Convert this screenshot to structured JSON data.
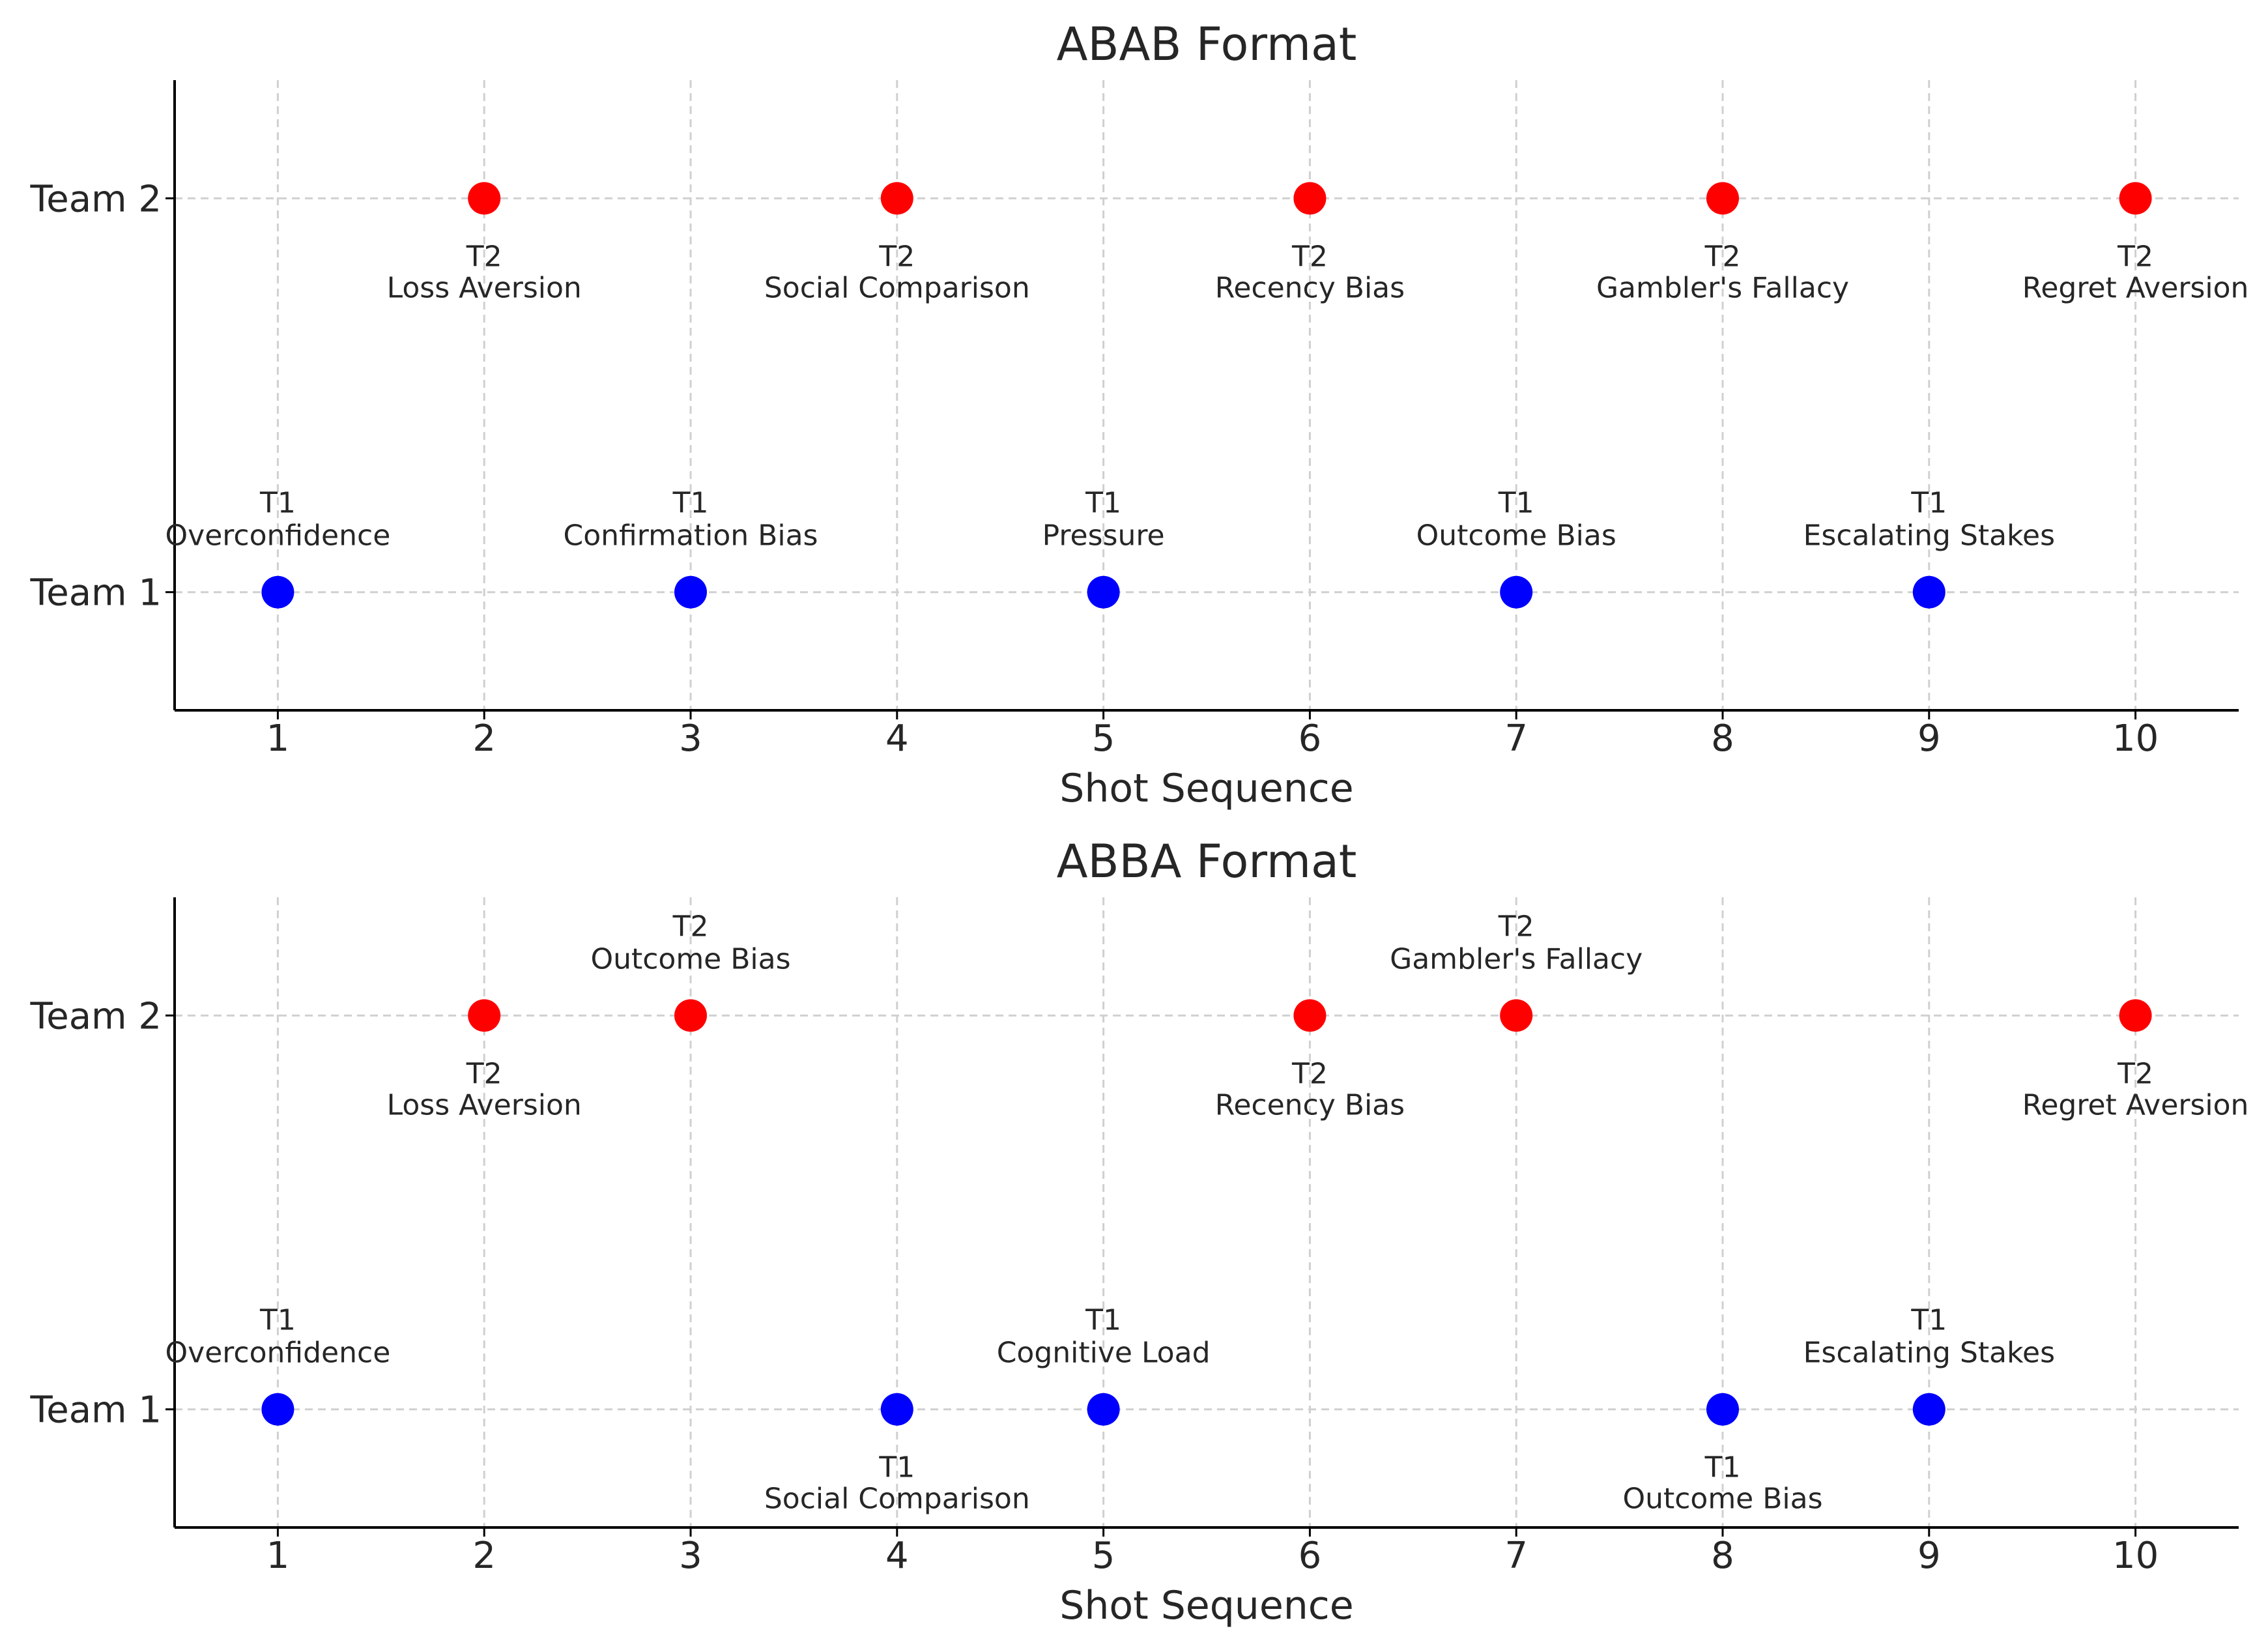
{
  "chart_data": [
    {
      "type": "scatter",
      "title": "ABAB Format",
      "xlabel": "Shot Sequence",
      "ylabel": "",
      "xlim": [
        0.5,
        10.5
      ],
      "ylim": [
        0.7,
        2.3
      ],
      "xticks": [
        "1",
        "2",
        "3",
        "4",
        "5",
        "6",
        "7",
        "8",
        "9",
        "10"
      ],
      "yticks": [
        {
          "value": 1,
          "label": "Team 1"
        },
        {
          "value": 2,
          "label": "Team 2"
        }
      ],
      "grid": true,
      "colors": {
        "team1": "#0000ff",
        "team2": "#ff0000"
      },
      "points": [
        {
          "x": 1,
          "y": 1,
          "team": "team1",
          "line1": "T1",
          "line2": "Overconfidence",
          "label_pos": "above"
        },
        {
          "x": 2,
          "y": 2,
          "team": "team2",
          "line1": "T2",
          "line2": "Loss Aversion",
          "label_pos": "below"
        },
        {
          "x": 3,
          "y": 1,
          "team": "team1",
          "line1": "T1",
          "line2": "Confirmation Bias",
          "label_pos": "above"
        },
        {
          "x": 4,
          "y": 2,
          "team": "team2",
          "line1": "T2",
          "line2": "Social Comparison",
          "label_pos": "below"
        },
        {
          "x": 5,
          "y": 1,
          "team": "team1",
          "line1": "T1",
          "line2": "Pressure",
          "label_pos": "above"
        },
        {
          "x": 6,
          "y": 2,
          "team": "team2",
          "line1": "T2",
          "line2": "Recency Bias",
          "label_pos": "below"
        },
        {
          "x": 7,
          "y": 1,
          "team": "team1",
          "line1": "T1",
          "line2": "Outcome Bias",
          "label_pos": "above"
        },
        {
          "x": 8,
          "y": 2,
          "team": "team2",
          "line1": "T2",
          "line2": "Gambler's Fallacy",
          "label_pos": "below"
        },
        {
          "x": 9,
          "y": 1,
          "team": "team1",
          "line1": "T1",
          "line2": "Escalating Stakes",
          "label_pos": "above"
        },
        {
          "x": 10,
          "y": 2,
          "team": "team2",
          "line1": "T2",
          "line2": "Regret Aversion",
          "label_pos": "below"
        }
      ]
    },
    {
      "type": "scatter",
      "title": "ABBA Format",
      "xlabel": "Shot Sequence",
      "ylabel": "",
      "xlim": [
        0.5,
        10.5
      ],
      "ylim": [
        0.7,
        2.3
      ],
      "xticks": [
        "1",
        "2",
        "3",
        "4",
        "5",
        "6",
        "7",
        "8",
        "9",
        "10"
      ],
      "yticks": [
        {
          "value": 1,
          "label": "Team 1"
        },
        {
          "value": 2,
          "label": "Team 2"
        }
      ],
      "grid": true,
      "colors": {
        "team1": "#0000ff",
        "team2": "#ff0000"
      },
      "points": [
        {
          "x": 1,
          "y": 1,
          "team": "team1",
          "line1": "T1",
          "line2": "Overconfidence",
          "label_pos": "above"
        },
        {
          "x": 2,
          "y": 2,
          "team": "team2",
          "line1": "T2",
          "line2": "Loss Aversion",
          "label_pos": "below"
        },
        {
          "x": 3,
          "y": 2,
          "team": "team2",
          "line1": "T2",
          "line2": "Outcome Bias",
          "label_pos": "above"
        },
        {
          "x": 4,
          "y": 1,
          "team": "team1",
          "line1": "T1",
          "line2": "Social Comparison",
          "label_pos": "below"
        },
        {
          "x": 5,
          "y": 1,
          "team": "team1",
          "line1": "T1",
          "line2": "Cognitive Load",
          "label_pos": "above"
        },
        {
          "x": 6,
          "y": 2,
          "team": "team2",
          "line1": "T2",
          "line2": "Recency Bias",
          "label_pos": "below"
        },
        {
          "x": 7,
          "y": 2,
          "team": "team2",
          "line1": "T2",
          "line2": "Gambler's Fallacy",
          "label_pos": "above"
        },
        {
          "x": 8,
          "y": 1,
          "team": "team1",
          "line1": "T1",
          "line2": "Outcome Bias",
          "label_pos": "below"
        },
        {
          "x": 9,
          "y": 1,
          "team": "team1",
          "line1": "T1",
          "line2": "Escalating Stakes",
          "label_pos": "above"
        },
        {
          "x": 10,
          "y": 2,
          "team": "team2",
          "line1": "T2",
          "line2": "Regret Aversion",
          "label_pos": "below"
        }
      ]
    }
  ]
}
